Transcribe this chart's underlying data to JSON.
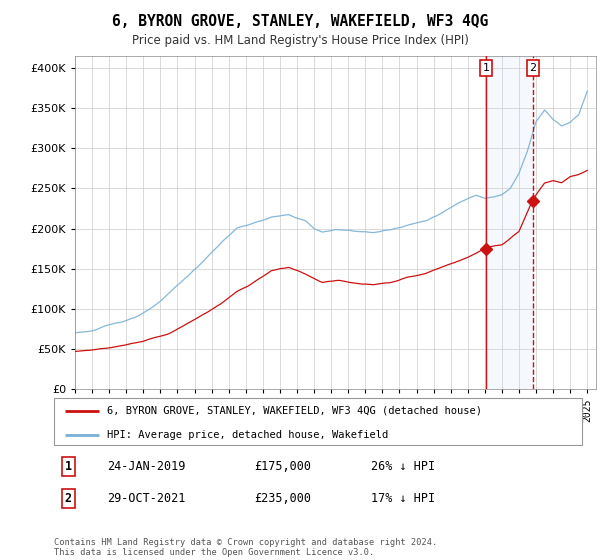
{
  "title": "6, BYRON GROVE, STANLEY, WAKEFIELD, WF3 4QG",
  "subtitle": "Price paid vs. HM Land Registry's House Price Index (HPI)",
  "ylabel_vals": [
    0,
    50000,
    100000,
    150000,
    200000,
    250000,
    300000,
    350000,
    400000
  ],
  "ylim": [
    0,
    415000
  ],
  "xlim_start": 1995.0,
  "xlim_end": 2025.5,
  "hpi_color": "#7ab0d4",
  "property_color": "#cc1111",
  "sale1_date": "24-JAN-2019",
  "sale1_price": 175000,
  "sale1_pct": "26%",
  "sale1_year": 2019.07,
  "sale2_date": "29-OCT-2021",
  "sale2_price": 235000,
  "sale2_pct": "17%",
  "sale2_year": 2021.83,
  "legend_label1": "6, BYRON GROVE, STANLEY, WAKEFIELD, WF3 4QG (detached house)",
  "legend_label2": "HPI: Average price, detached house, Wakefield",
  "footer": "Contains HM Land Registry data © Crown copyright and database right 2024.\nThis data is licensed under the Open Government Licence v3.0.",
  "marker_color": "#cc1111",
  "vline_color": "#cc1111",
  "box_color": "#cc1111",
  "highlight_bg": "#ddeeff"
}
